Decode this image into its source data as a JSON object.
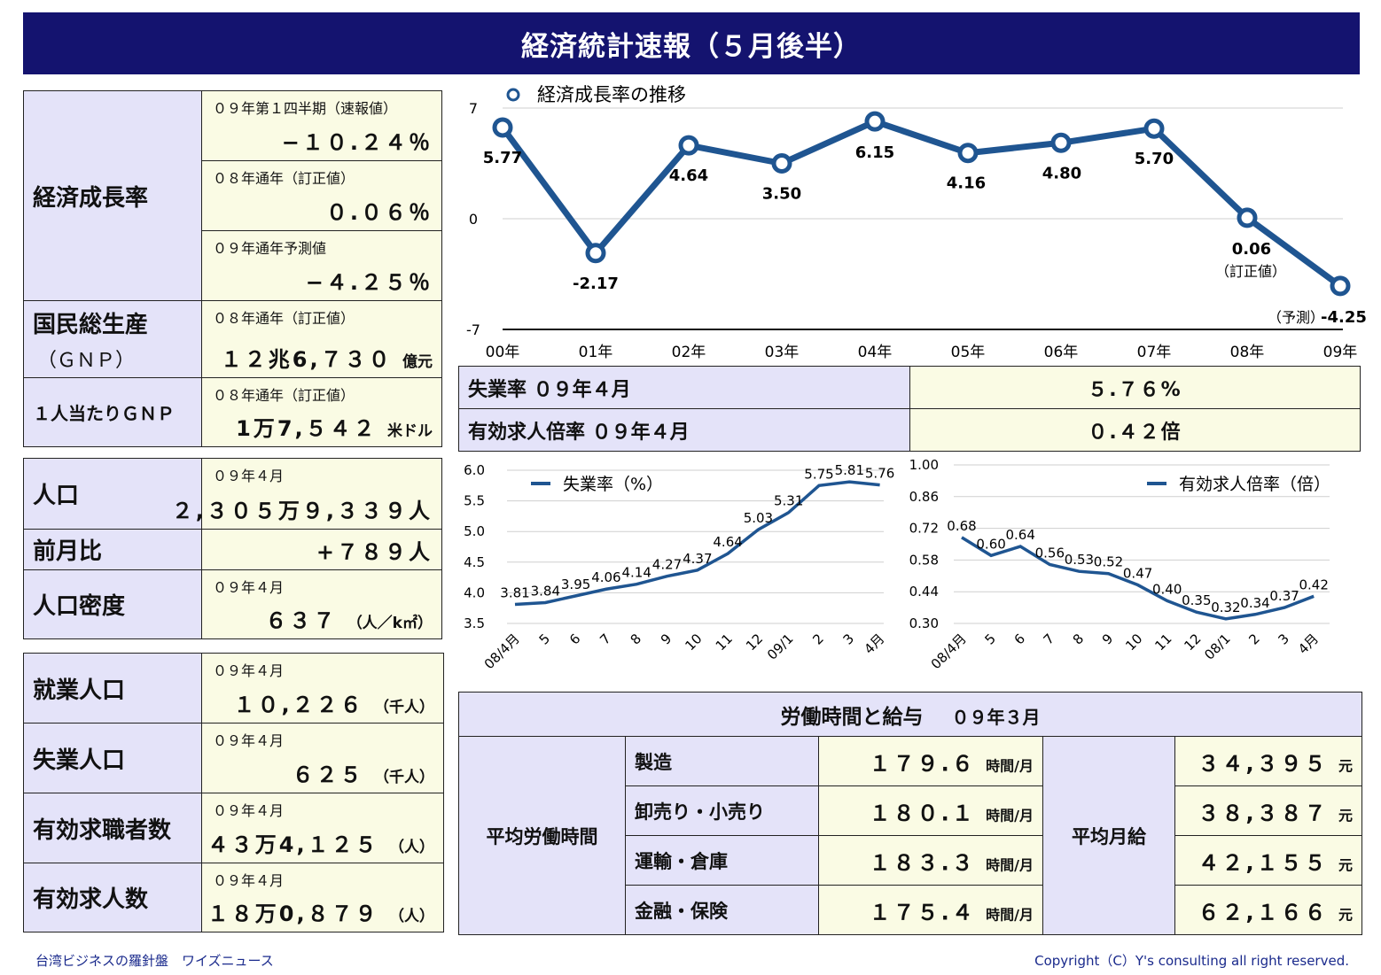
{
  "title": "経済統計速報（５月後半）",
  "panel1": {
    "gdp_label": "経済成長率",
    "gdp_rows": [
      {
        "sub": "０９年第１四半期（速報値）",
        "value": "−１０.２４％"
      },
      {
        "sub": "０８年通年（訂正値）",
        "value": "０.０６％"
      },
      {
        "sub": "０９年通年予測値",
        "value": "−４.２５％"
      }
    ],
    "gnp_label": "国民総生産",
    "gnp_label2": "（ＧＮＰ）",
    "gnp_sub": "０８年通年（訂正値）",
    "gnp_value": "１２兆6,７３０",
    "gnp_unit": "億元",
    "pc_label": "１人当たりＧＮＰ",
    "pc_sub": "０８年通年（訂正値）",
    "pc_value": "1万7,５４２",
    "pc_unit": "米ドル"
  },
  "panel2": {
    "pop_label": "人口",
    "pop_sub": "０９年４月",
    "pop_value": "２,３０５万９,３３９人",
    "mom_label": "前月比",
    "mom_value": "+７８９人",
    "dens_label": "人口密度",
    "dens_sub": "０９年４月",
    "dens_value": "６３７",
    "dens_unit": "（人／k㎡）"
  },
  "panel3": [
    {
      "label": "就業人口",
      "sub": "０９年４月",
      "value": "１０,２２６",
      "unit": "（千人）"
    },
    {
      "label": "失業人口",
      "sub": "０９年４月",
      "value": "６２５",
      "unit": "（千人）"
    },
    {
      "label": "有効求職者数",
      "sub": "０９年４月",
      "value": "４３万4,１２５",
      "unit": "（人）"
    },
    {
      "label": "有効求人数",
      "sub": "０９年４月",
      "value": "１８万0,８７９",
      "unit": "（人）"
    }
  ],
  "summary": [
    {
      "label": "失業率 ０９年４月",
      "value": "５.７６%"
    },
    {
      "label": "有効求人倍率 ０９年４月",
      "value": "０.４２倍"
    }
  ],
  "labor": {
    "header": "労働時間と給与",
    "header_date": "０９年３月",
    "hours_label": "平均労働時間",
    "wage_label": "平均月給",
    "hours_unit": "時間/月",
    "wage_unit": "元",
    "rows": [
      {
        "industry": "製造",
        "hours": "１７９.６",
        "wage": "３４,３９５"
      },
      {
        "industry": "卸売り・小売り",
        "hours": "１８０.１",
        "wage": "３８,３８７"
      },
      {
        "industry": "運輸・倉庫",
        "hours": "１８３.３",
        "wage": "４２,１５５"
      },
      {
        "industry": "金融・保険",
        "hours": "１７５.４",
        "wage": "６２,１６６"
      }
    ]
  },
  "footer": {
    "left": "台湾ビジネスの羅針盤　ワイズニュース",
    "right": "Copyright（C）Y's consulting all right reserved."
  },
  "colors": {
    "header": "#14136f",
    "label_bg": "#e4e3f9",
    "value_bg": "#fafbe4",
    "series": "#1f5591"
  },
  "chart_data": [
    {
      "type": "line",
      "legend": "経済成長率の推移",
      "x": [
        "00年",
        "01年",
        "02年",
        "03年",
        "04年",
        "05年",
        "06年",
        "07年",
        "08年",
        "09年"
      ],
      "values": [
        5.77,
        -2.17,
        4.64,
        3.5,
        6.15,
        4.16,
        4.8,
        5.7,
        0.06,
        -4.25
      ],
      "labels": [
        "5.77",
        "-2.17",
        "4.64",
        "3.50",
        "6.15",
        "4.16",
        "4.80",
        "5.70",
        "0.06",
        "-4.25"
      ],
      "annotations": [
        "（訂正値）",
        "（予測）"
      ],
      "yticks": [
        "7",
        "0",
        "-7"
      ],
      "ylim": [
        -7,
        7
      ]
    },
    {
      "type": "line",
      "legend": "失業率（%）",
      "x": [
        "08/4月",
        "5",
        "6",
        "7",
        "8",
        "9",
        "10",
        "11",
        "12",
        "09/1",
        "2",
        "3",
        "4月"
      ],
      "values": [
        3.81,
        3.84,
        3.95,
        4.06,
        4.14,
        4.27,
        4.37,
        4.64,
        5.03,
        5.31,
        5.75,
        5.81,
        5.76
      ],
      "labels": [
        "3.81",
        "3.84",
        "3.95",
        "4.06",
        "4.14",
        "4.27",
        "4.37",
        "4.64",
        "5.03",
        "5.31",
        "5.75",
        "5.81",
        "5.76"
      ],
      "yticks": [
        "6.0",
        "5.5",
        "5.0",
        "4.5",
        "4.0",
        "3.5"
      ],
      "ylim": [
        3.5,
        6.0
      ]
    },
    {
      "type": "line",
      "legend": "有効求人倍率（倍）",
      "x": [
        "08/4月",
        "5",
        "6",
        "7",
        "8",
        "9",
        "10",
        "11",
        "12",
        "08/1",
        "2",
        "3",
        "4月"
      ],
      "values": [
        0.68,
        0.6,
        0.64,
        0.56,
        0.53,
        0.52,
        0.47,
        0.4,
        0.35,
        0.32,
        0.34,
        0.37,
        0.42
      ],
      "labels": [
        "0.68",
        "0.60",
        "0.64",
        "0.56",
        "0.53",
        "0.52",
        "0.47",
        "0.40",
        "0.35",
        "0.32",
        "0.34",
        "0.37",
        "0.42"
      ],
      "yticks": [
        "1.00",
        "0.86",
        "0.72",
        "0.58",
        "0.44",
        "0.30"
      ],
      "ylim": [
        0.3,
        1.0
      ]
    }
  ]
}
